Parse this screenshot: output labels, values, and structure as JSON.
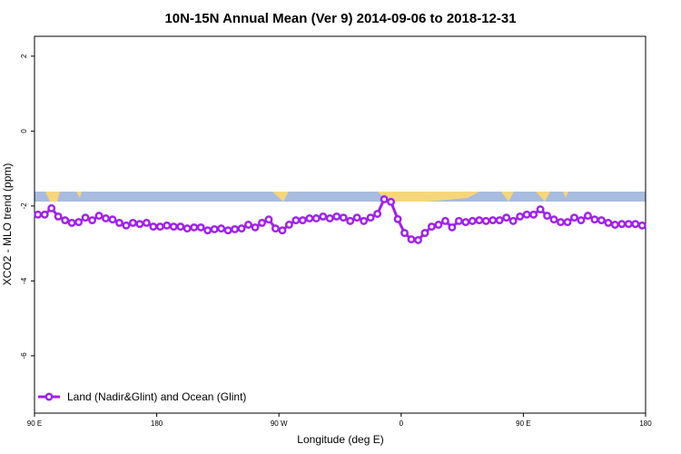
{
  "chart_data": {
    "type": "line",
    "title": "10N-15N Annual Mean (Ver 9)   2014-09-06 to 2018-12-31",
    "x_label": "Longitude (deg E)",
    "y_label": "XCO2 - MLO trend (ppm)",
    "xlim": [
      90,
      540
    ],
    "xticks": [
      {
        "value": 90,
        "label": "90 E"
      },
      {
        "value": 180,
        "label": "180"
      },
      {
        "value": 270,
        "label": "90 W"
      },
      {
        "value": 360,
        "label": "0"
      },
      {
        "value": 450,
        "label": "90 E"
      },
      {
        "value": 540,
        "label": "180"
      }
    ],
    "ylim": [
      -7.53,
      2.53
    ],
    "yticks": [
      2,
      0,
      -2,
      -4,
      -6
    ],
    "legend": "bottomleft",
    "x": [
      92.5,
      97.5,
      102.5,
      107.5,
      112.5,
      117.5,
      122.5,
      127.5,
      132.5,
      137.5,
      142.5,
      147.5,
      152.5,
      157.5,
      162.5,
      167.5,
      172.5,
      177.5,
      182.5,
      187.5,
      192.5,
      197.5,
      202.5,
      207.5,
      212.5,
      217.5,
      222.5,
      227.5,
      232.5,
      237.5,
      242.5,
      247.5,
      252.5,
      257.5,
      262.5,
      267.5,
      272.5,
      277.5,
      282.5,
      287.5,
      292.5,
      297.5,
      302.5,
      307.5,
      312.5,
      317.5,
      322.5,
      327.5,
      332.5,
      337.5,
      342.5,
      347.5,
      352.5,
      357.5,
      362.5,
      367.5,
      372.5,
      377.5,
      382.5,
      387.5,
      392.5,
      397.5,
      402.5,
      407.5,
      412.5,
      417.5,
      422.5,
      427.5,
      432.5,
      437.5,
      442.5,
      447.5,
      452.5,
      457.5,
      462.5,
      467.5,
      472.5,
      477.5,
      482.5,
      487.5,
      492.5,
      497.5,
      502.5,
      507.5,
      512.5,
      517.5,
      522.5,
      527.5,
      532.5,
      537.5
    ],
    "series": [
      {
        "name": "Land (Nadir&Glint) and Ocean (Glint)",
        "color": "#a020f0",
        "values": [
          -2.23,
          -2.23,
          -2.06,
          -2.28,
          -2.38,
          -2.45,
          -2.43,
          -2.31,
          -2.38,
          -2.26,
          -2.33,
          -2.36,
          -2.45,
          -2.52,
          -2.45,
          -2.48,
          -2.45,
          -2.55,
          -2.55,
          -2.52,
          -2.55,
          -2.55,
          -2.6,
          -2.57,
          -2.57,
          -2.65,
          -2.62,
          -2.6,
          -2.65,
          -2.62,
          -2.6,
          -2.5,
          -2.57,
          -2.45,
          -2.36,
          -2.6,
          -2.65,
          -2.5,
          -2.38,
          -2.38,
          -2.33,
          -2.33,
          -2.28,
          -2.33,
          -2.28,
          -2.31,
          -2.4,
          -2.31,
          -2.4,
          -2.31,
          -2.21,
          -1.82,
          -1.89,
          -2.35,
          -2.72,
          -2.89,
          -2.91,
          -2.72,
          -2.55,
          -2.5,
          -2.4,
          -2.57,
          -2.4,
          -2.43,
          -2.4,
          -2.38,
          -2.4,
          -2.38,
          -2.38,
          -2.31,
          -2.4,
          -2.28,
          -2.23,
          -2.23,
          -2.09,
          -2.26,
          -2.36,
          -2.43,
          -2.43,
          -2.31,
          -2.38,
          -2.26,
          -2.36,
          -2.38,
          -2.45,
          -2.5,
          -2.48,
          -2.48,
          -2.48,
          -2.52
        ]
      }
    ]
  }
}
